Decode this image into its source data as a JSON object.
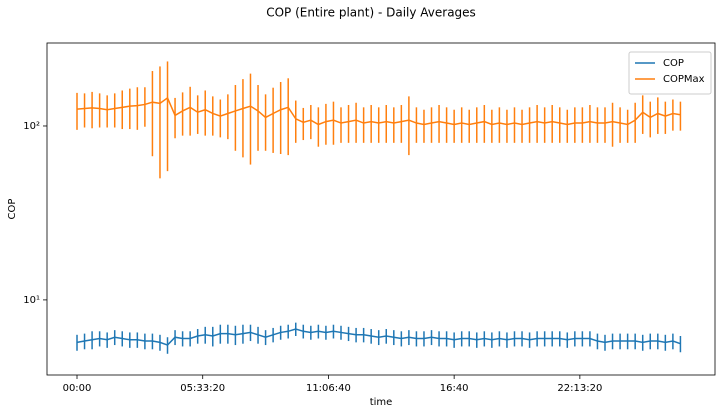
{
  "chart_data": {
    "type": "errorbar-line",
    "title": "COP (Entire plant) - Daily Averages",
    "xlabel": "time",
    "ylabel": "COP",
    "yscale": "log",
    "legend": "upper right",
    "x": [
      0,
      1200,
      2400,
      3600,
      4800,
      6000,
      7200,
      8400,
      9600,
      10800,
      12000,
      13200,
      14400,
      15600,
      16800,
      18000,
      19200,
      20400,
      21600,
      22800,
      24000,
      25200,
      26400,
      27600,
      28800,
      30000,
      31200,
      32400,
      33600,
      34800,
      36000,
      37200,
      38400,
      39600,
      40800,
      42000,
      43200,
      44400,
      45600,
      46800,
      48000,
      49200,
      50400,
      51600,
      52800,
      54000,
      55200,
      56400,
      57600,
      58800,
      60000,
      61200,
      62400,
      63600,
      64800,
      66000,
      67200,
      68400,
      69600,
      70800,
      72000,
      73200,
      74400,
      75600,
      76800,
      78000,
      79200,
      80400,
      81600,
      82800,
      84000,
      85200,
      86400,
      87600,
      88800,
      90000,
      91200,
      92400,
      93600,
      94800,
      96000
    ],
    "xlim": [
      -4773,
      101500
    ],
    "xticks": [
      {
        "value": 0,
        "label": "00:00"
      },
      {
        "value": 20000,
        "label": "05:33:20"
      },
      {
        "value": 40000,
        "label": "11:06:40"
      },
      {
        "value": 60000,
        "label": "16:40"
      },
      {
        "value": 80000,
        "label": "22:13:20"
      }
    ],
    "ylim": [
      3.7,
      300
    ],
    "yticks": [
      {
        "value": 10,
        "label": "10¹"
      },
      {
        "value": 100,
        "label": "10²"
      }
    ],
    "series": [
      {
        "name": "COP",
        "color": "#1f77b4",
        "values": [
          5.7,
          5.8,
          5.9,
          6.0,
          5.9,
          6.1,
          6.0,
          5.9,
          5.9,
          5.8,
          5.8,
          5.7,
          5.5,
          6.1,
          6.0,
          6.0,
          6.2,
          6.3,
          6.2,
          6.4,
          6.4,
          6.3,
          6.4,
          6.5,
          6.3,
          6.1,
          6.3,
          6.5,
          6.6,
          6.8,
          6.6,
          6.5,
          6.6,
          6.5,
          6.6,
          6.5,
          6.4,
          6.3,
          6.3,
          6.2,
          6.1,
          6.2,
          6.1,
          6.0,
          6.1,
          6.0,
          6.0,
          6.1,
          6.0,
          6.0,
          5.9,
          6.0,
          6.0,
          5.9,
          6.0,
          5.9,
          6.0,
          5.9,
          6.0,
          6.0,
          5.9,
          6.0,
          6.0,
          6.0,
          6.0,
          5.9,
          6.0,
          6.0,
          6.0,
          5.8,
          5.7,
          5.8,
          5.8,
          5.8,
          5.8,
          5.7,
          5.8,
          5.8,
          5.7,
          5.8,
          5.6
        ],
        "errors": [
          0.6,
          0.6,
          0.7,
          0.6,
          0.6,
          0.6,
          0.6,
          0.6,
          0.6,
          0.6,
          0.6,
          0.6,
          0.6,
          0.6,
          0.6,
          0.6,
          0.6,
          0.7,
          0.8,
          0.8,
          0.8,
          0.8,
          0.8,
          0.7,
          0.7,
          0.6,
          0.6,
          0.6,
          0.6,
          0.6,
          0.6,
          0.6,
          0.6,
          0.6,
          0.6,
          0.6,
          0.6,
          0.6,
          0.6,
          0.6,
          0.6,
          0.6,
          0.6,
          0.6,
          0.6,
          0.6,
          0.6,
          0.6,
          0.6,
          0.6,
          0.6,
          0.6,
          0.6,
          0.6,
          0.6,
          0.6,
          0.6,
          0.6,
          0.6,
          0.6,
          0.6,
          0.6,
          0.6,
          0.6,
          0.6,
          0.6,
          0.6,
          0.6,
          0.6,
          0.6,
          0.6,
          0.6,
          0.6,
          0.6,
          0.6,
          0.6,
          0.6,
          0.6,
          0.6,
          0.6,
          0.6
        ]
      },
      {
        "name": "COPMax",
        "color": "#ff7f0e",
        "values": [
          125,
          126,
          127,
          126,
          124,
          126,
          128,
          130,
          131,
          133,
          137,
          135,
          145,
          115,
          122,
          128,
          120,
          124,
          118,
          114,
          118,
          122,
          126,
          130,
          122,
          112,
          118,
          124,
          128,
          110,
          105,
          108,
          102,
          106,
          108,
          104,
          106,
          108,
          104,
          106,
          104,
          106,
          104,
          106,
          108,
          104,
          102,
          104,
          106,
          104,
          102,
          104,
          102,
          104,
          106,
          102,
          104,
          102,
          104,
          102,
          104,
          106,
          104,
          106,
          104,
          102,
          104,
          104,
          106,
          104,
          104,
          106,
          104,
          102,
          108,
          120,
          112,
          118,
          114,
          118,
          116
        ],
        "errors": [
          30,
          28,
          30,
          28,
          26,
          28,
          32,
          34,
          36,
          34,
          70,
          85,
          90,
          30,
          34,
          40,
          30,
          36,
          30,
          28,
          34,
          50,
          60,
          70,
          50,
          40,
          48,
          55,
          60,
          30,
          22,
          24,
          26,
          28,
          30,
          24,
          26,
          28,
          24,
          26,
          24,
          26,
          24,
          26,
          40,
          24,
          22,
          24,
          26,
          24,
          22,
          24,
          22,
          24,
          26,
          22,
          24,
          22,
          24,
          22,
          24,
          26,
          24,
          26,
          24,
          22,
          24,
          24,
          26,
          24,
          24,
          30,
          24,
          22,
          28,
          30,
          26,
          28,
          24,
          24,
          22
        ]
      }
    ]
  }
}
